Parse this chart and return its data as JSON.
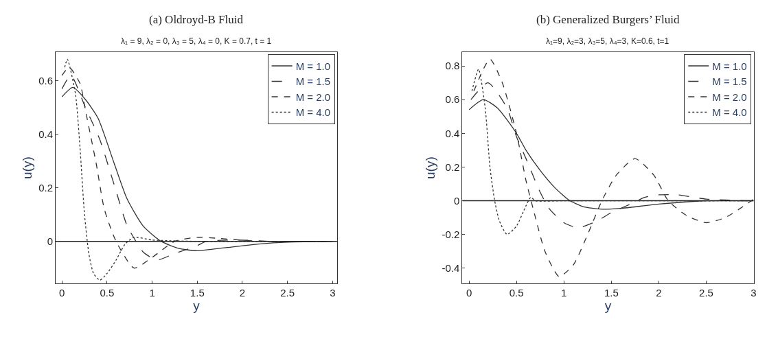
{
  "chart_data": [
    {
      "type": "line",
      "title": "(a) Oldroyd-B Fluid",
      "subtitle": "λ₁ = 9, λ₂ = 0, λ₃ = 5, λ₄ = 0, K = 0.7, t = 1",
      "xlabel": "y",
      "ylabel": "u(y)",
      "xlim": [
        -0.07,
        3.05
      ],
      "ylim": [
        -0.157,
        0.706
      ],
      "xticks": [
        0,
        0.5,
        1,
        1.5,
        2,
        2.5,
        3
      ],
      "yticks": [
        0,
        0.2,
        0.4,
        0.6
      ],
      "legend": "top right",
      "ref_lines": [
        {
          "axis": "y",
          "value": 0,
          "color": "#222222"
        }
      ],
      "series": [
        {
          "name": "M = 1.0",
          "color": "#333333",
          "line_style": "solid",
          "x": [
            0,
            0.12,
            0.26,
            0.4,
            0.58,
            0.72,
            0.9,
            1.1,
            1.3,
            1.5,
            1.83,
            2.18,
            2.5,
            3
          ],
          "values": [
            0.54,
            0.575,
            0.53,
            0.46,
            0.29,
            0.16,
            0.057,
            0,
            -0.027,
            -0.035,
            -0.023,
            -0.01,
            -0.003,
            0
          ]
        },
        {
          "name": "M = 1.5",
          "color": "#333333",
          "line_style": "dashed",
          "x": [
            0,
            0.1,
            0.26,
            0.42,
            0.58,
            0.72,
            0.82,
            0.9,
            1.05,
            1.26,
            1.49,
            1.6,
            1.95,
            2.3,
            3
          ],
          "values": [
            0.57,
            0.62,
            0.5,
            0.38,
            0.21,
            0.06,
            0,
            -0.04,
            -0.07,
            -0.044,
            -0.018,
            0,
            0.005,
            0,
            0
          ]
        },
        {
          "name": "M = 2.0",
          "color": "#333333",
          "line_style": "dashed",
          "x": [
            0,
            0.08,
            0.2,
            0.26,
            0.38,
            0.47,
            0.6,
            0.8,
            1.0,
            1.25,
            1.5,
            1.7,
            2.2,
            3
          ],
          "values": [
            0.62,
            0.65,
            0.59,
            0.49,
            0.29,
            0.12,
            0,
            -0.1,
            -0.06,
            0,
            0.015,
            0.012,
            0,
            0
          ]
        },
        {
          "name": "M = 4.0",
          "color": "#333333",
          "line_style": "dotted",
          "x": [
            0.03,
            0.06,
            0.15,
            0.2,
            0.25,
            0.3,
            0.35,
            0.42,
            0.5,
            0.6,
            0.7,
            0.8,
            1.0,
            1.5,
            3
          ],
          "values": [
            0.65,
            0.68,
            0.55,
            0.35,
            0.1,
            -0.05,
            -0.12,
            -0.145,
            -0.12,
            -0.07,
            -0.01,
            0.015,
            0.005,
            0,
            0
          ]
        }
      ]
    },
    {
      "type": "line",
      "title": "(b) Generalized Burgers’ Fluid",
      "subtitle": "λ₁=9, λ₂=3, λ₃=5, λ₄=3, K=0.6, t=1",
      "xlabel": "y",
      "ylabel": "u(y)",
      "xlim": [
        -0.07,
        3.0
      ],
      "ylim": [
        -0.49,
        0.88
      ],
      "xticks": [
        0,
        0.5,
        1,
        1.5,
        2,
        2.5,
        3
      ],
      "yticks": [
        -0.4,
        -0.2,
        0,
        0.2,
        0.4,
        0.6,
        0.8
      ],
      "legend": "top right",
      "ref_lines": [
        {
          "axis": "y",
          "value": 0,
          "color": "#222222"
        }
      ],
      "series": [
        {
          "name": "M = 1.0",
          "color": "#333333",
          "line_style": "solid",
          "x": [
            0,
            0.15,
            0.3,
            0.5,
            0.6,
            0.75,
            0.9,
            1.05,
            1.2,
            1.4,
            1.6,
            2.0,
            2.5,
            3
          ],
          "values": [
            0.54,
            0.6,
            0.55,
            0.4,
            0.3,
            0.18,
            0.08,
            0.005,
            -0.035,
            -0.05,
            -0.045,
            -0.02,
            0,
            0
          ]
        },
        {
          "name": "M = 1.5",
          "color": "#333333",
          "line_style": "dashed",
          "x": [
            0.02,
            0.2,
            0.4,
            0.5,
            0.6,
            0.75,
            0.85,
            1.0,
            1.15,
            1.35,
            1.5,
            1.7,
            1.85,
            2.0,
            2.2,
            2.5,
            3
          ],
          "values": [
            0.6,
            0.7,
            0.55,
            0.38,
            0.25,
            0.05,
            -0.05,
            -0.13,
            -0.16,
            -0.12,
            -0.07,
            -0.02,
            0.02,
            0.035,
            0.035,
            0.01,
            0
          ]
        },
        {
          "name": "M = 2.0",
          "color": "#333333",
          "line_style": "dashed",
          "x": [
            0.05,
            0.22,
            0.35,
            0.5,
            0.6,
            0.7,
            0.8,
            0.95,
            1.1,
            1.25,
            1.4,
            1.55,
            1.75,
            1.95,
            2.1,
            2.3,
            2.5,
            2.7,
            2.9,
            3.0
          ],
          "values": [
            0.65,
            0.84,
            0.7,
            0.4,
            0.12,
            -0.1,
            -0.3,
            -0.45,
            -0.38,
            -0.2,
            0,
            0.15,
            0.25,
            0.15,
            0,
            -0.09,
            -0.13,
            -0.1,
            -0.03,
            0.01
          ]
        },
        {
          "name": "M = 4.0",
          "color": "#333333",
          "line_style": "dotted",
          "x": [
            0.03,
            0.1,
            0.17,
            0.22,
            0.27,
            0.32,
            0.4,
            0.5,
            0.6,
            0.65,
            0.7,
            1.0,
            3
          ],
          "values": [
            0.65,
            0.78,
            0.55,
            0.2,
            0,
            -0.12,
            -0.2,
            -0.15,
            -0.03,
            0.02,
            0,
            0,
            0
          ]
        }
      ]
    }
  ]
}
